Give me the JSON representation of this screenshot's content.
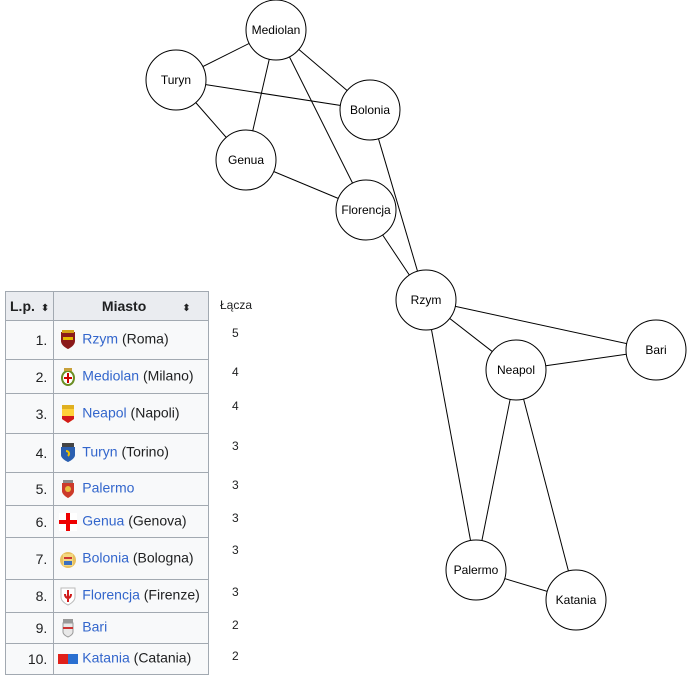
{
  "graph": {
    "nodes": [
      {
        "id": "mediolan",
        "label": "Mediolan"
      },
      {
        "id": "turyn",
        "label": "Turyn"
      },
      {
        "id": "bolonia",
        "label": "Bolonia"
      },
      {
        "id": "genua",
        "label": "Genua"
      },
      {
        "id": "florencja",
        "label": "Florencja"
      },
      {
        "id": "rzym",
        "label": "Rzym"
      },
      {
        "id": "neapol",
        "label": "Neapol"
      },
      {
        "id": "bari",
        "label": "Bari"
      },
      {
        "id": "palermo",
        "label": "Palermo"
      },
      {
        "id": "katania",
        "label": "Katania"
      }
    ],
    "edges": [
      [
        "mediolan",
        "turyn"
      ],
      [
        "mediolan",
        "genua"
      ],
      [
        "mediolan",
        "bolonia"
      ],
      [
        "mediolan",
        "florencja"
      ],
      [
        "turyn",
        "bolonia"
      ],
      [
        "turyn",
        "genua"
      ],
      [
        "genua",
        "florencja"
      ],
      [
        "bolonia",
        "rzym"
      ],
      [
        "florencja",
        "rzym"
      ],
      [
        "rzym",
        "bari"
      ],
      [
        "rzym",
        "neapol"
      ],
      [
        "rzym",
        "palermo"
      ],
      [
        "neapol",
        "bari"
      ],
      [
        "neapol",
        "palermo"
      ],
      [
        "neapol",
        "katania"
      ],
      [
        "palermo",
        "katania"
      ]
    ]
  },
  "table": {
    "headers": {
      "lp": "L.p.",
      "city": "Miasto",
      "sort_glyph": "⬍",
      "links": "Łącza"
    },
    "rows": [
      {
        "lp": "1.",
        "name": "Rzym",
        "native": "(Roma)",
        "links": "5",
        "coat": "rome"
      },
      {
        "lp": "2.",
        "name": "Mediolan",
        "native": "(Milano)",
        "links": "4",
        "coat": "milan"
      },
      {
        "lp": "3.",
        "name": "Neapol",
        "native": "(Napoli)",
        "links": "4",
        "coat": "naples"
      },
      {
        "lp": "4.",
        "name": "Turyn",
        "native": "(Torino)",
        "links": "3",
        "coat": "turin"
      },
      {
        "lp": "5.",
        "name": "Palermo",
        "native": "",
        "links": "3",
        "coat": "palermo"
      },
      {
        "lp": "6.",
        "name": "Genua",
        "native": "(Genova)",
        "links": "3",
        "coat": "genoa"
      },
      {
        "lp": "7.",
        "name": "Bolonia",
        "native": "(Bologna)",
        "links": "3",
        "coat": "bologna"
      },
      {
        "lp": "8.",
        "name": "Florencja",
        "native": "(Firenze)",
        "links": "3",
        "coat": "florence"
      },
      {
        "lp": "9.",
        "name": "Bari",
        "native": "",
        "links": "2",
        "coat": "bari"
      },
      {
        "lp": "10.",
        "name": "Katania",
        "native": "(Catania)",
        "links": "2",
        "coat": "catania"
      }
    ]
  }
}
